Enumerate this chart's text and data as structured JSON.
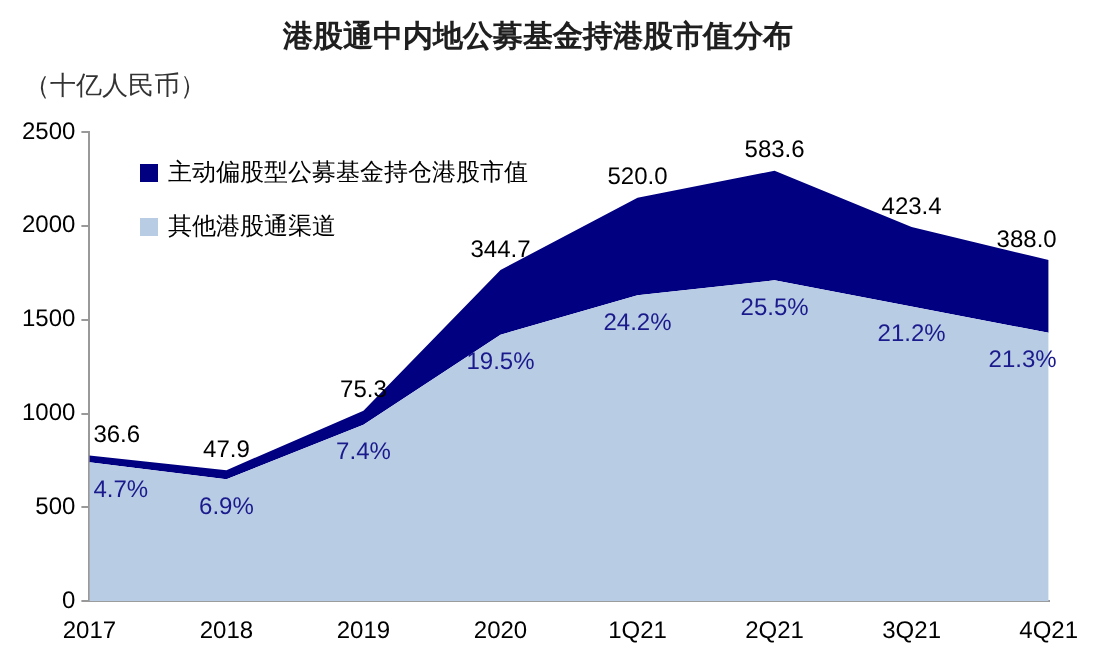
{
  "chart_data": {
    "type": "area",
    "title": "港股通中内地公募基金持港股市值分布",
    "ylabel": "（十亿人民币）",
    "stacked": true,
    "legend": "top left",
    "categories": [
      "2017",
      "2018",
      "2019",
      "2020",
      "1Q21",
      "2Q21",
      "3Q21",
      "4Q21"
    ],
    "ylim": [
      0,
      2500
    ],
    "yticks": [
      0,
      500,
      1000,
      1500,
      2000,
      2500
    ],
    "series": [
      {
        "name": "其他港股通渠道",
        "color": "#b8cce4",
        "values": [
          740,
          650,
          940,
          1420,
          1630,
          1710,
          1570,
          1430
        ]
      },
      {
        "name": "主动偏股型公募基金持仓港股市值",
        "color": "#000080",
        "values": [
          36.6,
          47.9,
          75.3,
          344.7,
          520.0,
          583.6,
          423.4,
          388.0
        ],
        "value_labels": [
          "36.6",
          "47.9",
          "75.3",
          "344.7",
          "520.0",
          "583.6",
          "423.4",
          "388.0"
        ]
      }
    ],
    "annotations": [
      {
        "text": "4.7%",
        "x": "2017",
        "y": 740
      },
      {
        "text": "6.9%",
        "x": "2018",
        "y": 650
      },
      {
        "text": "7.4%",
        "x": "2019",
        "y": 940
      },
      {
        "text": "19.5%",
        "x": "2020",
        "y": 1420
      },
      {
        "text": "24.2%",
        "x": "1Q21",
        "y": 1630
      },
      {
        "text": "25.5%",
        "x": "2Q21",
        "y": 1710
      },
      {
        "text": "21.2%",
        "x": "3Q21",
        "y": 1570
      },
      {
        "text": "21.3%",
        "x": "4Q21",
        "y": 1430
      }
    ]
  }
}
